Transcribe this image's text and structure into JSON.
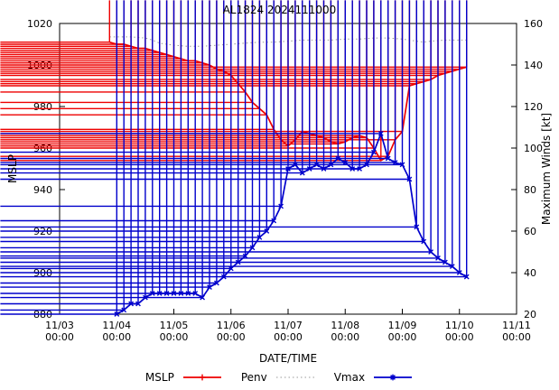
{
  "title": "AL1824 2024111000",
  "axes": {
    "x": {
      "label": "DATE/TIME",
      "ticks": [
        {
          "date": "11/03",
          "time": "00:00"
        },
        {
          "date": "11/04",
          "time": "00:00"
        },
        {
          "date": "11/05",
          "time": "00:00"
        },
        {
          "date": "11/06",
          "time": "00:00"
        },
        {
          "date": "11/07",
          "time": "00:00"
        },
        {
          "date": "11/08",
          "time": "00:00"
        },
        {
          "date": "11/09",
          "time": "00:00"
        },
        {
          "date": "11/10",
          "time": "00:00"
        },
        {
          "date": "11/11",
          "time": "00:00"
        }
      ]
    },
    "y_left": {
      "label": "MSLP",
      "min": 880,
      "max": 1020,
      "step": 20
    },
    "y_right": {
      "label": "Maximum Winds [kt]",
      "min": 20,
      "max": 160,
      "step": 20
    }
  },
  "legend": [
    {
      "label": "MSLP",
      "color": "#ee0000",
      "line": "solid",
      "marker": "plus"
    },
    {
      "label": "Penv",
      "color": "#999999",
      "line": "dotted",
      "marker": "none"
    },
    {
      "label": "Vmax",
      "color": "#0000cc",
      "line": "solid",
      "marker": "star"
    }
  ],
  "chart_data": {
    "type": "line",
    "title": "AL1824 2024111000",
    "xlabel": "DATE/TIME",
    "x_unit_days_since": "2024-11-03 00:00",
    "x_range": [
      0,
      8
    ],
    "left_axis": {
      "label": "MSLP",
      "range": [
        880,
        1020
      ]
    },
    "right_axis": {
      "label": "Maximum Winds [kt]",
      "range": [
        20,
        160
      ]
    },
    "series": [
      {
        "name": "Penv",
        "axis": "left",
        "color": "#999999",
        "style": "dotted",
        "marker": "none",
        "x": [
          0.875,
          1.25,
          1.5,
          1.625,
          1.75,
          1.875,
          2,
          2.25,
          2.5,
          2.75,
          3,
          3.25,
          3.5,
          3.75,
          4,
          4.25,
          4.5,
          4.75,
          5,
          5.25,
          5.5,
          5.75,
          6,
          6.25,
          6.375,
          6.5,
          6.75,
          7,
          7.125
        ],
        "y": [
          1013.5,
          1013.5,
          1013,
          1012,
          1010.5,
          1010,
          1009.5,
          1009,
          1009,
          1009.5,
          1010,
          1010.5,
          1011,
          1011,
          1011.5,
          1012,
          1012,
          1012,
          1012.5,
          1012.5,
          1013,
          1013,
          1012.5,
          1011.5,
          1011,
          1011.5,
          1012,
          1012,
          1012
        ]
      },
      {
        "name": "MSLP",
        "axis": "left",
        "color": "#ee0000",
        "style": "solid",
        "marker": "plus",
        "x": [
          0.875,
          1,
          1.125,
          1.25,
          1.375,
          1.5,
          1.625,
          1.75,
          1.875,
          2,
          2.125,
          2.25,
          2.375,
          2.5,
          2.625,
          2.75,
          2.875,
          3,
          3.125,
          3.25,
          3.375,
          3.5,
          3.625,
          3.75,
          3.875,
          4,
          4.125,
          4.25,
          4.375,
          4.5,
          4.625,
          4.75,
          4.875,
          5,
          5.125,
          5.25,
          5.375,
          5.5,
          5.625,
          5.75,
          5.875,
          6,
          6.125,
          6.25,
          6.375,
          6.5,
          6.625,
          6.75,
          6.875,
          7,
          7.125
        ],
        "y": [
          1011,
          1010,
          1010,
          1009,
          1008,
          1008,
          1007,
          1006,
          1005,
          1004,
          1003,
          1002,
          1002,
          1001,
          1000,
          998,
          997,
          995,
          991,
          987,
          982,
          979,
          976,
          969,
          964,
          961,
          964,
          968,
          967,
          966,
          965,
          963,
          962,
          963,
          965,
          966,
          965,
          960,
          954,
          956,
          964,
          968,
          990,
          991,
          992,
          993,
          995,
          996,
          997,
          998,
          999
        ]
      },
      {
        "name": "Vmax",
        "axis": "right",
        "color": "#0000cc",
        "style": "solid",
        "marker": "star",
        "x": [
          1,
          1.125,
          1.25,
          1.375,
          1.5,
          1.625,
          1.75,
          1.875,
          2,
          2.125,
          2.25,
          2.375,
          2.5,
          2.625,
          2.75,
          2.875,
          3,
          3.125,
          3.25,
          3.375,
          3.5,
          3.625,
          3.75,
          3.875,
          4,
          4.125,
          4.25,
          4.375,
          4.5,
          4.625,
          4.75,
          4.875,
          5,
          5.125,
          5.25,
          5.375,
          5.5,
          5.625,
          5.75,
          5.875,
          6,
          6.125,
          6.25,
          6.375,
          6.5,
          6.625,
          6.75,
          6.875,
          7,
          7.125
        ],
        "y": [
          20,
          22,
          25,
          25,
          28,
          30,
          30,
          30,
          30,
          30,
          30,
          30,
          28,
          33,
          35,
          38,
          42,
          45,
          48,
          52,
          57,
          60,
          65,
          72,
          90,
          92,
          88,
          90,
          92,
          90,
          92,
          95,
          93,
          90,
          90,
          92,
          98,
          107,
          95,
          93,
          92,
          85,
          62,
          55,
          50,
          47,
          45,
          43,
          40,
          38
        ]
      }
    ]
  }
}
